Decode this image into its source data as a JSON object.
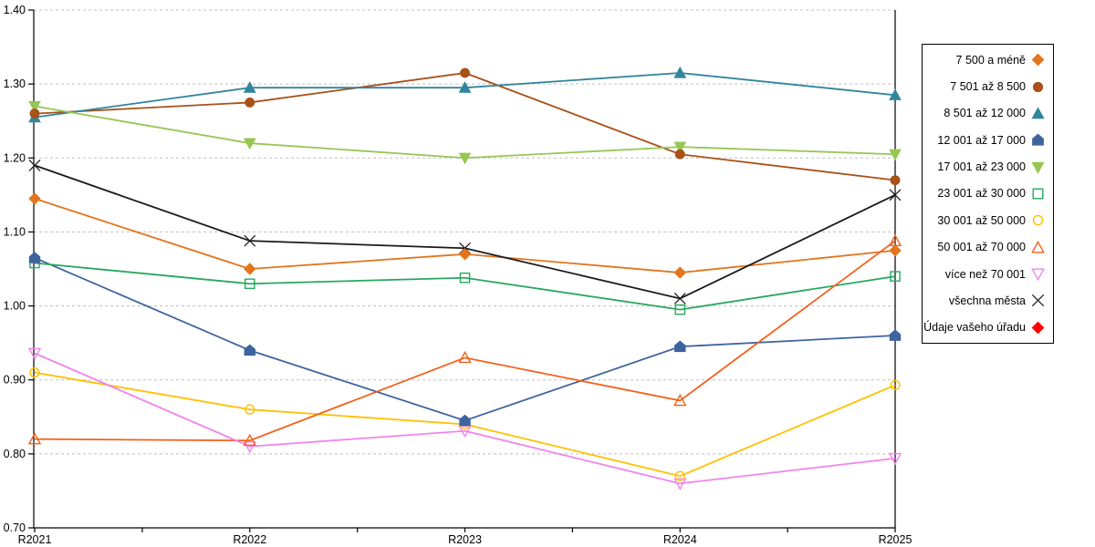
{
  "chart_data": {
    "type": "line",
    "title": "",
    "xlabel": "",
    "ylabel": "",
    "categories": [
      "R2021",
      "R2022",
      "R2023",
      "R2024",
      "R2025"
    ],
    "series": [
      {
        "name": "7 500 a méně",
        "marker": "diamond",
        "filled": true,
        "color": "#E2751D",
        "values": [
          1.145,
          1.05,
          1.07,
          1.045,
          1.075
        ]
      },
      {
        "name": "7 501 až 8 500",
        "marker": "circle",
        "filled": true,
        "color": "#A85119",
        "values": [
          1.26,
          1.275,
          1.315,
          1.205,
          1.17
        ]
      },
      {
        "name": "8 501 až 12 000",
        "marker": "triangle-up",
        "filled": true,
        "color": "#31859C",
        "values": [
          1.255,
          1.295,
          1.295,
          1.315,
          1.285
        ]
      },
      {
        "name": "12 001 až 17 000",
        "marker": "pentagon",
        "filled": true,
        "color": "#3E649E",
        "values": [
          1.065,
          0.94,
          0.845,
          0.945,
          0.96
        ]
      },
      {
        "name": "17 001 až 23 000",
        "marker": "triangle-down",
        "filled": true,
        "color": "#97C653",
        "values": [
          1.27,
          1.22,
          1.2,
          1.215,
          1.205
        ]
      },
      {
        "name": "23 001 až 30 000",
        "marker": "square",
        "filled": false,
        "color": "#27A85F",
        "values": [
          1.058,
          1.03,
          1.038,
          0.995,
          1.04
        ]
      },
      {
        "name": "30 001 až 50 000",
        "marker": "circle",
        "filled": false,
        "color": "#FFC000",
        "values": [
          0.91,
          0.86,
          0.84,
          0.77,
          0.893
        ]
      },
      {
        "name": "50 001 až 70 000",
        "marker": "triangle-up",
        "filled": false,
        "color": "#F4601A",
        "values": [
          0.82,
          0.818,
          0.93,
          0.872,
          1.088
        ]
      },
      {
        "name": "více než 70 001",
        "marker": "triangle-down",
        "filled": false,
        "color": "#F184EC",
        "values": [
          0.936,
          0.81,
          0.831,
          0.76,
          0.794
        ]
      },
      {
        "name": "všechna města",
        "marker": "x",
        "filled": false,
        "color": "#1A1A1A",
        "values": [
          1.19,
          1.088,
          1.078,
          1.01,
          1.15
        ]
      },
      {
        "name": "Údaje vašeho úřadu",
        "marker": "diamond",
        "filled": true,
        "color": "#FF0000",
        "values": [
          null,
          null,
          null,
          null,
          null
        ]
      }
    ],
    "ylim": [
      0.7,
      1.4
    ],
    "y_tick_step": 0.1,
    "y_ticks": [
      "1.40",
      "1.30",
      "1.20",
      "1.10",
      "1.00",
      "0.90",
      "0.80",
      "0.70"
    ],
    "grid": "horizontal-dashed",
    "legend_position": "right-box"
  },
  "colors": {
    "background": "#FFFFFF",
    "grid": "#BFBFBF",
    "axis": "#000000",
    "tick_label": "#000000"
  }
}
